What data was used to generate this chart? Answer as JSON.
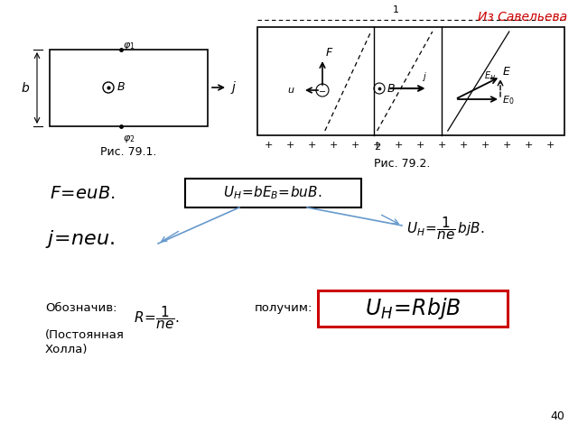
{
  "title_text": "Из Савельева",
  "title_color": "#cc0000",
  "background_color": "#ffffff",
  "fig1_caption": "Рис. 79.1.",
  "fig2_caption": "Рис. 79.2.",
  "page_number": "40"
}
